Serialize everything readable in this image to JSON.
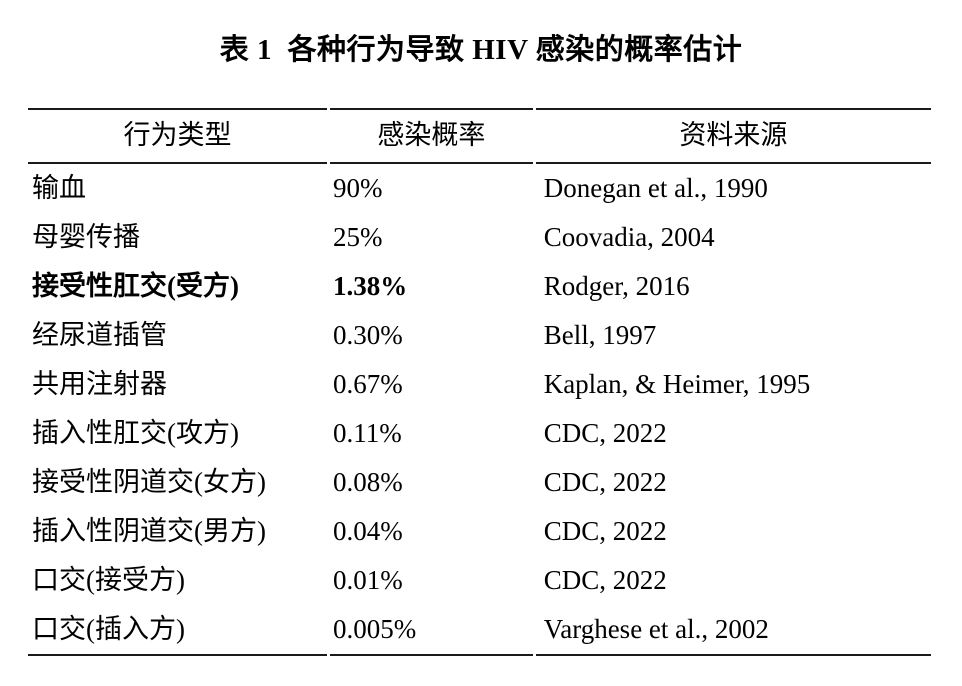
{
  "page": {
    "background_color": "#ffffff",
    "text_color": "#000000",
    "rule_color": "#1a1a1a"
  },
  "title": "表 1  各种行为导致 HIV 感染的概率估计",
  "table": {
    "headers": [
      "行为类型",
      "感染概率",
      "资料来源"
    ],
    "rows": [
      {
        "behavior": "输血",
        "probability": "90%",
        "source": "Donegan et al., 1990"
      },
      {
        "behavior": "母婴传播",
        "probability": "25%",
        "source": "Coovadia, 2004"
      },
      {
        "behavior": "接受性肛交(受方)",
        "probability": "1.38%",
        "source": "Rodger, 2016",
        "emphasis": "bold"
      },
      {
        "behavior": "经尿道插管",
        "probability": "0.30%",
        "source": "Bell, 1997"
      },
      {
        "behavior": "共用注射器",
        "probability": "0.67%",
        "source": "Kaplan, & Heimer, 1995"
      },
      {
        "behavior": "插入性肛交(攻方)",
        "probability": "0.11%",
        "source": "CDC, 2022"
      },
      {
        "behavior": "接受性阴道交(女方)",
        "probability": "0.08%",
        "source": "CDC, 2022"
      },
      {
        "behavior": "插入性阴道交(男方)",
        "probability": "0.04%",
        "source": "CDC, 2022"
      },
      {
        "behavior": "口交(接受方)",
        "probability": "0.01%",
        "source": "CDC, 2022"
      },
      {
        "behavior": "口交(插入方)",
        "probability": "0.005%",
        "source": "Varghese et al., 2002"
      }
    ]
  }
}
